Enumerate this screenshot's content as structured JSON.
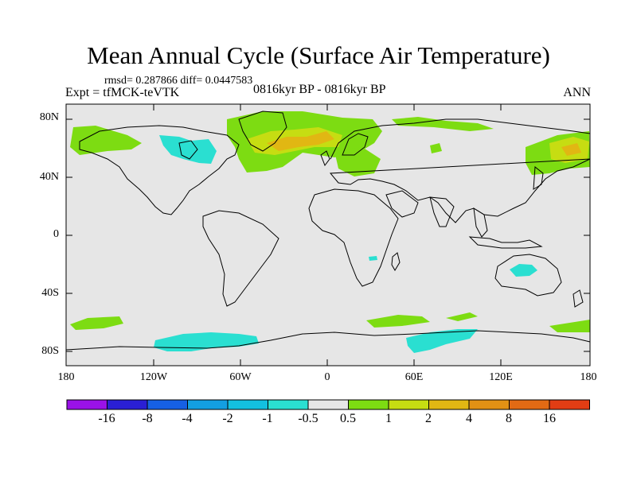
{
  "title": "Mean Annual Cycle (Surface Air Temperature)",
  "stats": "rmsd= 0.287866 diff= 0.0447583",
  "experiment": "Expt = tfMCK-teVTK",
  "period": "0816kyr BP - 0816kyr BP",
  "season": "ANN",
  "y_ticks": [
    "80N",
    "40N",
    "0",
    "40S",
    "80S"
  ],
  "x_ticks": [
    "180",
    "120W",
    "60W",
    "0",
    "60E",
    "120E",
    "180"
  ],
  "colorbar": {
    "colors": [
      "#9a12e8",
      "#2a1fd4",
      "#1660e4",
      "#139fe1",
      "#13c0e0",
      "#2adfd1",
      "#e6e6e6",
      "#7ddc12",
      "#c6dd12",
      "#e1b713",
      "#e29114",
      "#e26a14",
      "#e23d14"
    ],
    "labels": [
      "-16",
      "-8",
      "-4",
      "-2",
      "-1",
      "-0.5",
      "0.5",
      "1",
      "2",
      "4",
      "8",
      "16"
    ]
  }
}
